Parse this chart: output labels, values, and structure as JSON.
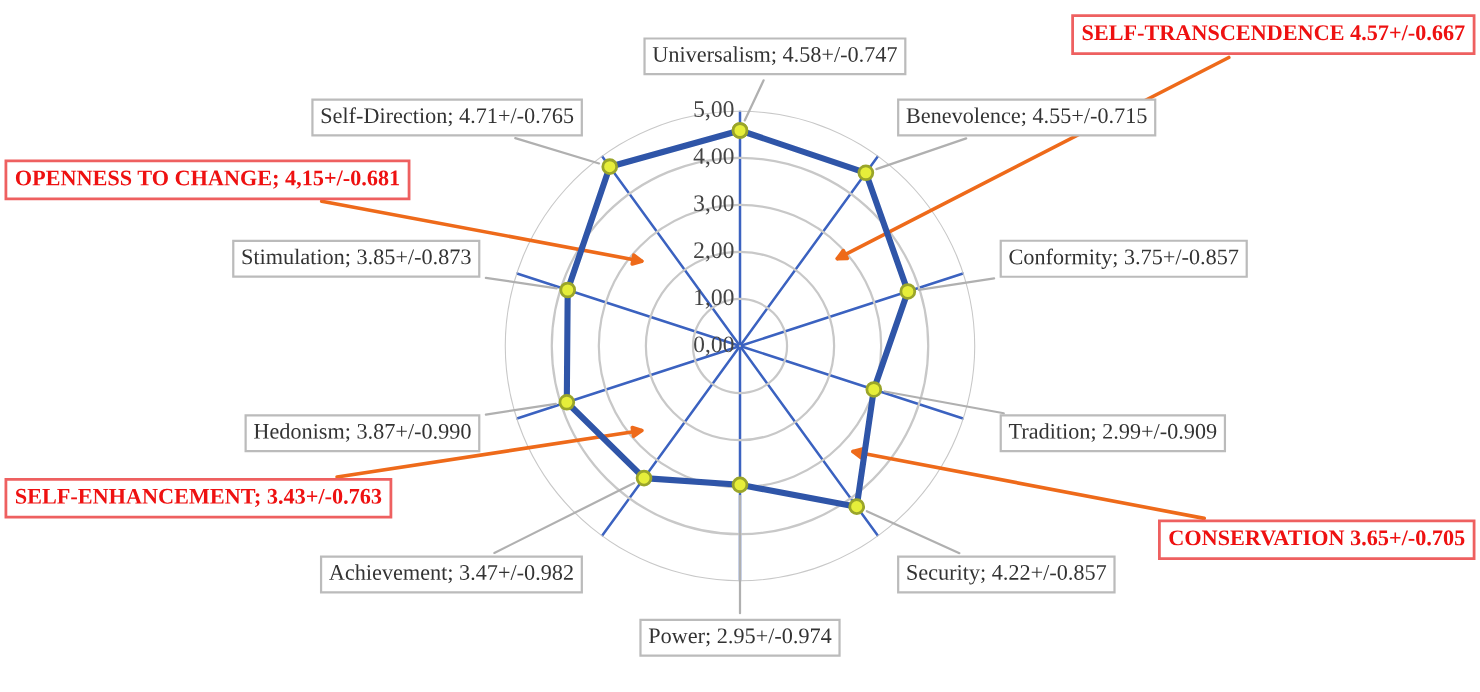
{
  "chart_data": {
    "type": "radar",
    "categories": [
      "Universalism; 4.58+/-0.747",
      "Benevolence; 4.55+/-0.715",
      "Conformity; 3.75+/-0.857",
      "Tradition; 2.99+/-0.909",
      "Security; 4.22+/-0.857",
      "Power; 2.95+/-0.974",
      "Achievement; 3.47+/-0.982",
      "Hedonism; 3.87+/-0.990",
      "Stimulation; 3.85+/-0.873",
      "Self-Direction; 4.71+/-0.765"
    ],
    "series": [
      {
        "color": "#2f55a8",
        "values": [
          4.58,
          4.55,
          3.75,
          2.99,
          4.22,
          2.95,
          3.47,
          3.87,
          3.85,
          4.71
        ]
      }
    ],
    "ylim": [
      0,
      5
    ],
    "yticks": [
      {
        "value": 0,
        "label": "0,00"
      },
      {
        "value": 1,
        "label": "1,00"
      },
      {
        "value": 2,
        "label": "2,00"
      },
      {
        "value": 3,
        "label": "3,00"
      },
      {
        "value": 4,
        "label": "4,00"
      },
      {
        "value": 5,
        "label": "5,00"
      }
    ],
    "grid": true,
    "marker": "circle",
    "legend": false,
    "annotations": [
      "SELF-TRANSCENDENCE 4.57+/-0.667",
      "CONSERVATION 3.65+/-0.705",
      "SELF-ENHANCEMENT; 3.43+/-0.763",
      "OPENNESS TO CHANGE; 4,15+/-0.681"
    ]
  }
}
